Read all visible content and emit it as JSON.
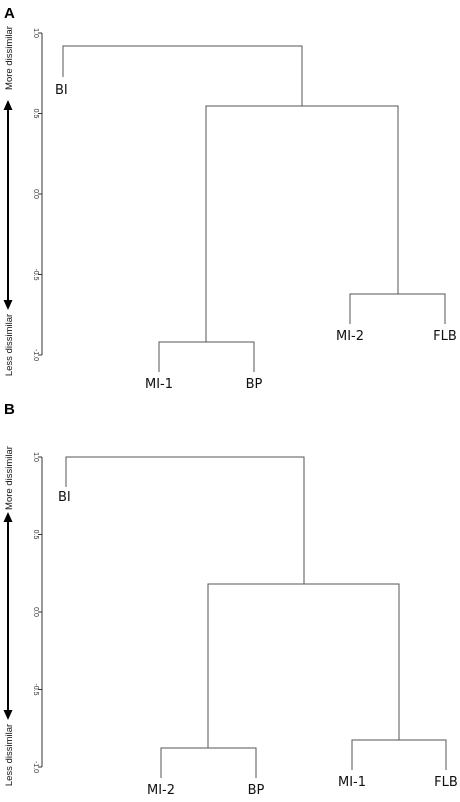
{
  "panels": [
    {
      "letter": "A",
      "axis": {
        "ymin": -1.0,
        "ymax": 1.0,
        "ticks": [
          "1.0",
          "0.5",
          "0.0",
          "-0.5",
          "-1.0"
        ]
      },
      "more_label": "More dissimilar",
      "less_label": "Less dissimilar",
      "leaves": [
        "BI",
        "MI-1",
        "BP",
        "MI-2",
        "FLB"
      ],
      "merges": [
        {
          "children": [
            "MI-1",
            "BP"
          ],
          "height": -0.92
        },
        {
          "children": [
            "MI-2",
            "FLB"
          ],
          "height": -0.62
        },
        {
          "children": [
            "MI-1|BP",
            "MI-2|FLB"
          ],
          "height": 0.55
        },
        {
          "children": [
            "BI",
            "rest"
          ],
          "height": 0.92
        }
      ]
    },
    {
      "letter": "B",
      "axis": {
        "ymin": -1.0,
        "ymax": 1.0,
        "ticks": [
          "1.0",
          "0.5",
          "0.0",
          "-0.5",
          "-1.0"
        ]
      },
      "more_label": "More dissimilar",
      "less_label": "Less dissimilar",
      "leaves": [
        "BI",
        "MI-2",
        "BP",
        "MI-1",
        "FLB"
      ],
      "merges": [
        {
          "children": [
            "MI-2",
            "BP"
          ],
          "height": -0.87
        },
        {
          "children": [
            "MI-1",
            "FLB"
          ],
          "height": -0.82
        },
        {
          "children": [
            "MI-2|BP",
            "MI-1|FLB"
          ],
          "height": 0.17
        },
        {
          "children": [
            "BI",
            "rest"
          ],
          "height": 1.0
        }
      ]
    }
  ]
}
